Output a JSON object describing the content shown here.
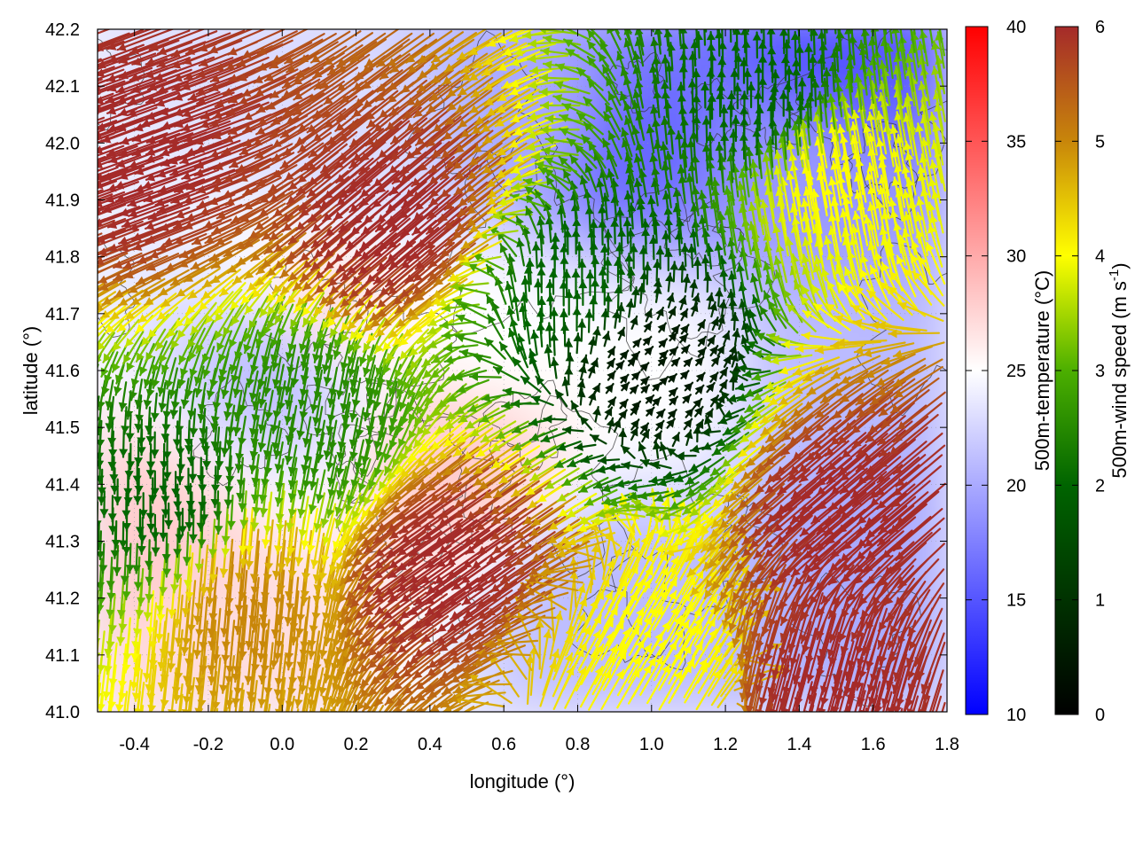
{
  "chart_data": {
    "type": "heatmap",
    "description_free": "",
    "xlabel": "longitude (°)",
    "ylabel": "latitude (°)",
    "xlim": [
      -0.5,
      1.8
    ],
    "ylim": [
      41.0,
      42.2
    ],
    "xticks": [
      "-0.4",
      "-0.2",
      "0.0",
      "0.2",
      "0.4",
      "0.6",
      "0.8",
      "1.0",
      "1.2",
      "1.4",
      "1.6",
      "1.8"
    ],
    "xtick_values": [
      -0.4,
      -0.2,
      0.0,
      0.2,
      0.4,
      0.6,
      0.8,
      1.0,
      1.2,
      1.4,
      1.6,
      1.8
    ],
    "yticks": [
      "41.0",
      "41.1",
      "41.2",
      "41.3",
      "41.4",
      "41.5",
      "41.6",
      "41.7",
      "41.8",
      "41.9",
      "42.0",
      "42.1",
      "42.2"
    ],
    "ytick_values": [
      41.0,
      41.1,
      41.2,
      41.3,
      41.4,
      41.5,
      41.6,
      41.7,
      41.8,
      41.9,
      42.0,
      42.1,
      42.2
    ],
    "grid": true,
    "temperature_colorbar": {
      "label": "500m-temperature (°C)",
      "range": [
        10,
        40
      ],
      "ticks": [
        "10",
        "15",
        "20",
        "25",
        "30",
        "35",
        "40"
      ],
      "tick_values": [
        10,
        15,
        20,
        25,
        30,
        35,
        40
      ],
      "colors": {
        "low": "#0000ff",
        "mid": "#ffffff",
        "high": "#ff0000"
      }
    },
    "wind_colorbar": {
      "label_main": "500m-wind speed (m s",
      "label_sup": "-1",
      "label_end": ")",
      "range": [
        0,
        6
      ],
      "ticks": [
        "0",
        "1",
        "2",
        "3",
        "4",
        "5",
        "6"
      ],
      "tick_values": [
        0,
        1,
        2,
        3,
        4,
        5,
        6
      ],
      "colors": [
        "#000000",
        "#006400",
        "#4caf00",
        "#ffff00",
        "#d4a017",
        "#b5651d",
        "#a52a2a"
      ]
    },
    "temperature_regions": [
      {
        "lon": 1.5,
        "lat": 42.15,
        "temp": 15
      },
      {
        "lon": 0.95,
        "lat": 42.0,
        "temp": 16
      },
      {
        "lon": 1.4,
        "lat": 41.95,
        "temp": 19
      },
      {
        "lon": 0.7,
        "lat": 42.05,
        "temp": 20
      },
      {
        "lon": 0.0,
        "lat": 41.62,
        "temp": 21
      },
      {
        "lon": 1.6,
        "lat": 41.3,
        "temp": 20
      },
      {
        "lon": 1.5,
        "lat": 41.6,
        "temp": 21
      },
      {
        "lon": 0.9,
        "lat": 41.2,
        "temp": 21
      },
      {
        "lon": 0.2,
        "lat": 42.0,
        "temp": 23
      },
      {
        "lon": 0.5,
        "lat": 41.45,
        "temp": 28
      },
      {
        "lon": -0.4,
        "lat": 41.3,
        "temp": 28
      },
      {
        "lon": -0.2,
        "lat": 41.1,
        "temp": 27
      },
      {
        "lon": 0.1,
        "lat": 41.7,
        "temp": 27
      },
      {
        "lon": 1.0,
        "lat": 41.6,
        "temp": 25
      },
      {
        "lon": 0.6,
        "lat": 41.65,
        "temp": 25
      }
    ],
    "wind_regions": [
      {
        "lon": -0.3,
        "lat": 42.0,
        "speed": 6,
        "dir": 200
      },
      {
        "lon": 0.4,
        "lat": 41.9,
        "speed": 6,
        "dir": 220
      },
      {
        "lon": 0.55,
        "lat": 41.3,
        "speed": 6,
        "dir": 215
      },
      {
        "lon": 1.6,
        "lat": 41.4,
        "speed": 6,
        "dir": 220
      },
      {
        "lon": 1.5,
        "lat": 41.1,
        "speed": 6,
        "dir": 255
      },
      {
        "lon": -0.1,
        "lat": 41.25,
        "speed": 5,
        "dir": 265
      },
      {
        "lon": 0.8,
        "lat": 41.75,
        "speed": 2,
        "dir": 90
      },
      {
        "lon": 1.3,
        "lat": 42.05,
        "speed": 2,
        "dir": 90
      },
      {
        "lon": 1.0,
        "lat": 41.6,
        "speed": 0.5,
        "dir": 45
      },
      {
        "lon": 0.1,
        "lat": 41.55,
        "speed": 2.5,
        "dir": 260
      },
      {
        "lon": -0.3,
        "lat": 41.4,
        "speed": 2,
        "dir": 270
      },
      {
        "lon": 1.0,
        "lat": 41.1,
        "speed": 4,
        "dir": 60
      },
      {
        "lon": 1.5,
        "lat": 41.9,
        "speed": 4,
        "dir": 100
      }
    ]
  }
}
